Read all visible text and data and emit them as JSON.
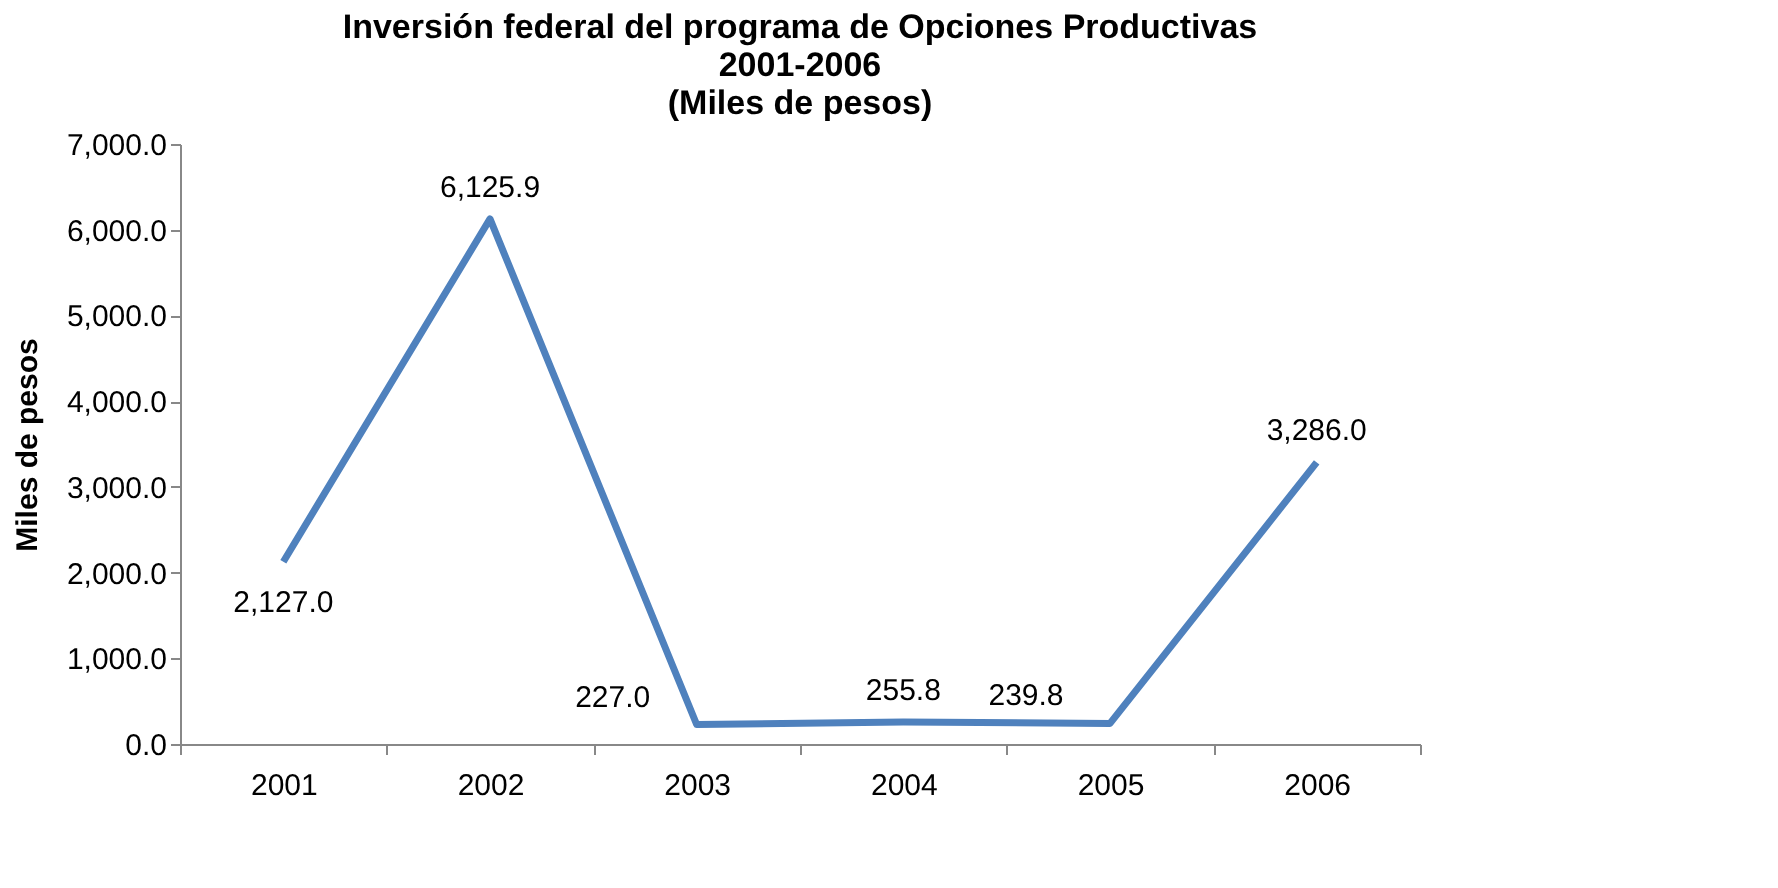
{
  "chart_data": {
    "type": "line",
    "title": [
      "Inversión federal del programa de Opciones Productivas",
      "2001-2006",
      "(Miles de pesos)"
    ],
    "ylabel": "Miles de pesos",
    "categories": [
      "2001",
      "2002",
      "2003",
      "2004",
      "2005",
      "2006"
    ],
    "series": [
      {
        "color": "#4f81bd",
        "values": [
          2127.0,
          6125.9,
          227.0,
          255.8,
          239.8,
          3286.0
        ],
        "value_labels": [
          "2,127.0",
          "6,125.9",
          "227.0",
          "255.8",
          "239.8",
          "3,286.0"
        ]
      }
    ],
    "ylim": [
      0,
      7000
    ],
    "yticks": [
      {
        "value": 0,
        "label": "0.0"
      },
      {
        "value": 1000,
        "label": "1,000.0"
      },
      {
        "value": 2000,
        "label": "2,000.0"
      },
      {
        "value": 3000,
        "label": "3,000.0"
      },
      {
        "value": 4000,
        "label": "4,000.0"
      },
      {
        "value": 5000,
        "label": "5,000.0"
      },
      {
        "value": 6000,
        "label": "6,000.0"
      },
      {
        "value": 7000,
        "label": "7,000.0"
      }
    ],
    "grid": false,
    "legend": false,
    "marker": "none",
    "line_style": "solid"
  }
}
